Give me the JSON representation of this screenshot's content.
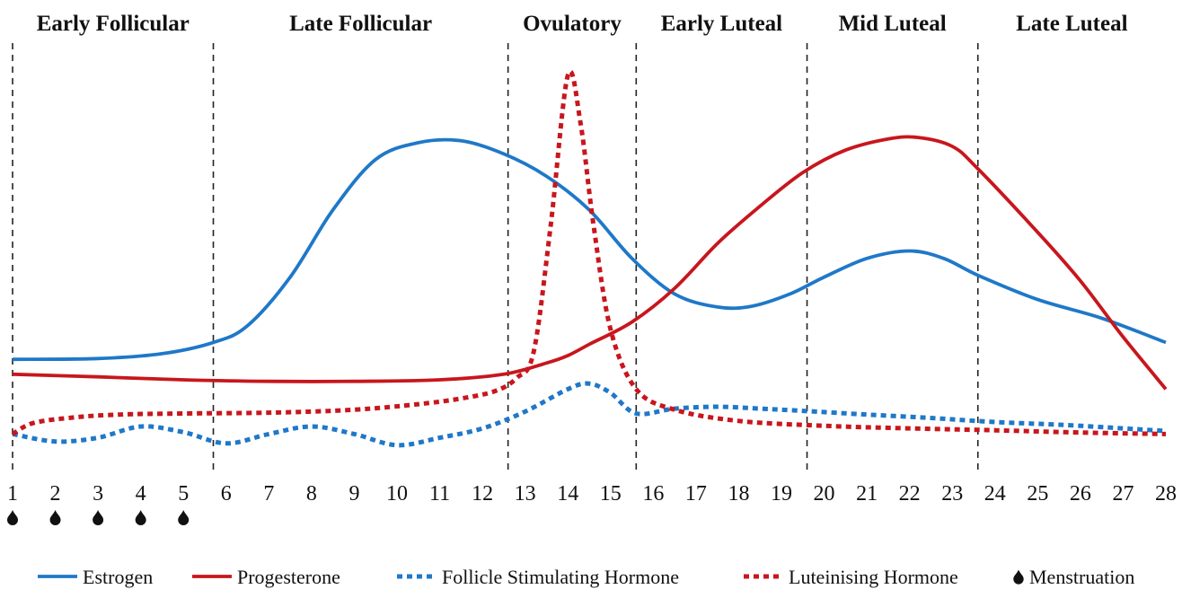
{
  "chart_data": {
    "type": "line",
    "title": "",
    "xlabel": "",
    "ylabel": "",
    "x": [
      1,
      2,
      3,
      4,
      5,
      6,
      7,
      8,
      9,
      10,
      11,
      12,
      13,
      14,
      15,
      16,
      17,
      18,
      19,
      20,
      21,
      22,
      23,
      24,
      25,
      26,
      27,
      28
    ],
    "tick_labels": [
      "1",
      "2",
      "3",
      "4",
      "5",
      "6",
      "7",
      "8",
      "9",
      "10",
      "11",
      "12",
      "13",
      "14",
      "15",
      "16",
      "17",
      "18",
      "19",
      "20",
      "21",
      "22",
      "23",
      "24",
      "25",
      "26",
      "27",
      "28"
    ],
    "xlim": [
      1,
      28
    ],
    "ylim": [
      0,
      100
    ],
    "grid": false,
    "legend_position": "bottom",
    "phases": [
      {
        "label": "Early Follicular",
        "start": 1,
        "end": 5.7
      },
      {
        "label": "Late Follicular",
        "start": 5.7,
        "end": 12.6
      },
      {
        "label": "Ovulatory",
        "start": 12.6,
        "end": 15.6
      },
      {
        "label": "Early Luteal",
        "start": 15.6,
        "end": 19.6
      },
      {
        "label": "Mid Luteal",
        "start": 19.6,
        "end": 23.6
      },
      {
        "label": "Late Luteal",
        "start": 23.6,
        "end": 28
      }
    ],
    "menstruation_days": [
      1,
      2,
      3,
      4,
      5
    ],
    "series": [
      {
        "name": "Estrogen",
        "color": "#1f78c8",
        "style": "solid",
        "points": [
          [
            1,
            24
          ],
          [
            3,
            24.2
          ],
          [
            4.5,
            25.5
          ],
          [
            5.7,
            28.5
          ],
          [
            6.5,
            33
          ],
          [
            7.5,
            46
          ],
          [
            8.5,
            64
          ],
          [
            9.5,
            77.5
          ],
          [
            10.5,
            82
          ],
          [
            11.5,
            82.5
          ],
          [
            12.5,
            79
          ],
          [
            13.5,
            73
          ],
          [
            14.5,
            64
          ],
          [
            15.5,
            51
          ],
          [
            16.5,
            41.5
          ],
          [
            17.5,
            38
          ],
          [
            18.3,
            38.2
          ],
          [
            19.2,
            41.5
          ],
          [
            20,
            46
          ],
          [
            21,
            51
          ],
          [
            22,
            53
          ],
          [
            22.8,
            51
          ],
          [
            23.6,
            46.5
          ],
          [
            25,
            40
          ],
          [
            26.5,
            35
          ],
          [
            28,
            28.5
          ]
        ]
      },
      {
        "name": "Progesterone",
        "color": "#c8161d",
        "style": "solid",
        "points": [
          [
            1,
            20
          ],
          [
            3,
            19.3
          ],
          [
            5,
            18.5
          ],
          [
            7,
            18.1
          ],
          [
            9,
            18.1
          ],
          [
            11,
            18.5
          ],
          [
            12.5,
            20
          ],
          [
            13.5,
            23
          ],
          [
            14,
            25
          ],
          [
            14.5,
            28
          ],
          [
            15.5,
            34
          ],
          [
            16.5,
            43
          ],
          [
            17.5,
            55
          ],
          [
            18.5,
            65
          ],
          [
            19.5,
            74
          ],
          [
            20.5,
            80
          ],
          [
            21.5,
            83
          ],
          [
            22.2,
            83.4
          ],
          [
            23,
            81
          ],
          [
            23.6,
            75
          ],
          [
            25,
            58
          ],
          [
            26,
            45
          ],
          [
            27,
            30
          ],
          [
            28,
            16
          ]
        ]
      },
      {
        "name": "Follicle Stimulating Hormone",
        "color": "#1f78c8",
        "style": "dotted",
        "points": [
          [
            1,
            4
          ],
          [
            2,
            2
          ],
          [
            3,
            3
          ],
          [
            4,
            6
          ],
          [
            5,
            4.5
          ],
          [
            6,
            1.5
          ],
          [
            7,
            4
          ],
          [
            8,
            6
          ],
          [
            9,
            4
          ],
          [
            10,
            1
          ],
          [
            11,
            3
          ],
          [
            12,
            5.5
          ],
          [
            13,
            10
          ],
          [
            14,
            16
          ],
          [
            14.5,
            17.5
          ],
          [
            15,
            15
          ],
          [
            15.6,
            9.5
          ],
          [
            16.5,
            10.8
          ],
          [
            17.5,
            11.3
          ],
          [
            18.5,
            10.8
          ],
          [
            19.5,
            10.2
          ],
          [
            21,
            9.2
          ],
          [
            22.5,
            8.3
          ],
          [
            24,
            7.2
          ],
          [
            25.5,
            6.5
          ],
          [
            27,
            5.5
          ],
          [
            28,
            4.8
          ]
        ]
      },
      {
        "name": "Luteinising Hormone",
        "color": "#c8161d",
        "style": "dotted",
        "points": [
          [
            1,
            4
          ],
          [
            1.5,
            7
          ],
          [
            2.5,
            8.5
          ],
          [
            3.5,
            9.2
          ],
          [
            5,
            9.5
          ],
          [
            7,
            9.7
          ],
          [
            9,
            10.5
          ],
          [
            10.5,
            12
          ],
          [
            11.5,
            13.5
          ],
          [
            12.3,
            15.5
          ],
          [
            12.8,
            19
          ],
          [
            13.2,
            26
          ],
          [
            13.6,
            60
          ],
          [
            14,
            100
          ],
          [
            14.3,
            87
          ],
          [
            14.6,
            60
          ],
          [
            15,
            32
          ],
          [
            15.6,
            16
          ],
          [
            16.5,
            10.5
          ],
          [
            18,
            7.5
          ],
          [
            20,
            6.2
          ],
          [
            22,
            5.5
          ],
          [
            24,
            5
          ],
          [
            26,
            4.4
          ],
          [
            28,
            4
          ]
        ]
      }
    ],
    "legend": [
      {
        "label": "Estrogen",
        "marker": "solid-line",
        "color": "#1f78c8"
      },
      {
        "label": "Progesterone",
        "marker": "solid-line",
        "color": "#c8161d"
      },
      {
        "label": "Follicle Stimulating Hormone",
        "marker": "dotted-line",
        "color": "#1f78c8"
      },
      {
        "label": "Luteinising Hormone",
        "marker": "dotted-line",
        "color": "#c8161d"
      },
      {
        "label": "Menstruation",
        "marker": "drop-icon",
        "color": "#111111"
      }
    ]
  }
}
